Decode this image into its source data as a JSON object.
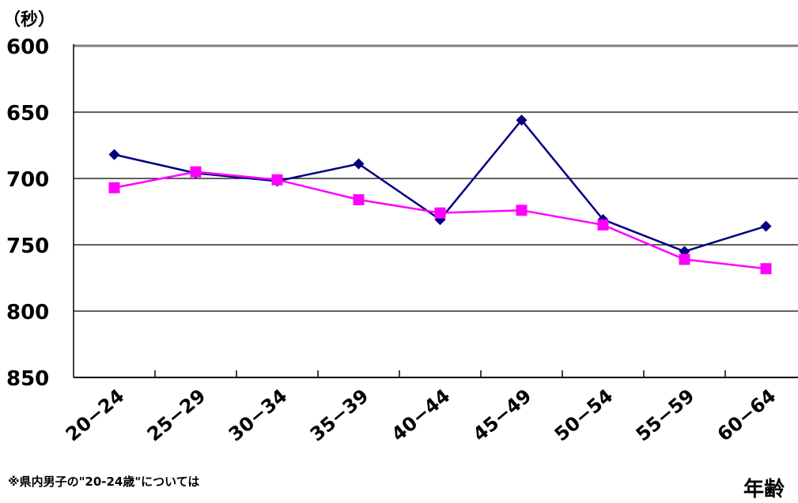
{
  "chart_data": {
    "type": "line",
    "ylabel": "（秒）",
    "xlabel": "年齢",
    "ylim": [
      850,
      600
    ],
    "y_inverted": true,
    "yticks": [
      "600",
      "650",
      "700",
      "750",
      "800",
      "850"
    ],
    "categories": [
      "20−24",
      "25−29",
      "30−34",
      "35−39",
      "40−44",
      "45−49",
      "50−54",
      "55−59",
      "60−64"
    ],
    "grid": true,
    "series": [
      {
        "color": "#000080",
        "marker": "diamond",
        "values": [
          682,
          696,
          702,
          689,
          731,
          656,
          731,
          755,
          736
        ]
      },
      {
        "color": "#ff00ff",
        "marker": "square",
        "values": [
          707,
          695,
          701,
          716,
          726,
          724,
          735,
          761,
          768
        ]
      }
    ]
  },
  "footnote": "※県内男子の\"20-24歳\"については"
}
